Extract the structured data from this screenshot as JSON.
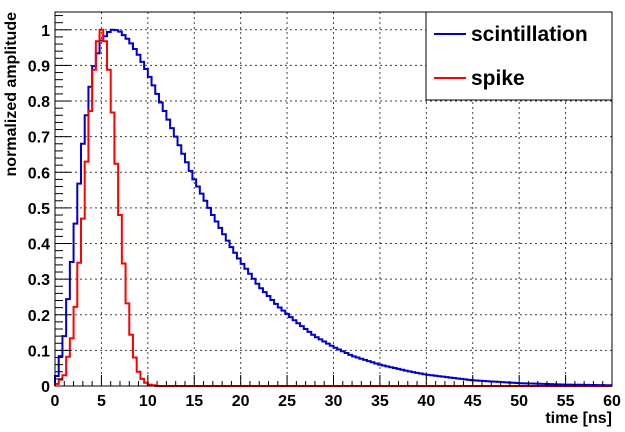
{
  "chart_data": {
    "type": "line",
    "xlabel": "time [ns]",
    "ylabel": "normalized amplitude",
    "xlim": [
      0,
      60
    ],
    "ylim": [
      0,
      1.05
    ],
    "x_ticks": [
      "0",
      "5",
      "10",
      "15",
      "20",
      "25",
      "30",
      "35",
      "40",
      "45",
      "50",
      "55",
      "60"
    ],
    "y_ticks": [
      "0",
      "0.1",
      "0.2",
      "0.3",
      "0.4",
      "0.5",
      "0.6",
      "0.7",
      "0.8",
      "0.9",
      "1"
    ],
    "grid": true,
    "legend_position": "top-right",
    "series": [
      {
        "name": "scintillation",
        "color": "#0000cc",
        "x": [
          0,
          1,
          2,
          3,
          4,
          5,
          6,
          6.5,
          7,
          8,
          9,
          10,
          11,
          12,
          13,
          14,
          15,
          16,
          17,
          18,
          19,
          20,
          22,
          24,
          26,
          28,
          30,
          32,
          35,
          38,
          40,
          45,
          50,
          55,
          60
        ],
        "y": [
          0,
          0.14,
          0.4,
          0.68,
          0.88,
          0.97,
          1.0,
          1.0,
          0.995,
          0.97,
          0.93,
          0.88,
          0.82,
          0.76,
          0.7,
          0.64,
          0.58,
          0.53,
          0.48,
          0.435,
          0.39,
          0.35,
          0.28,
          0.225,
          0.18,
          0.14,
          0.11,
          0.085,
          0.06,
          0.042,
          0.032,
          0.016,
          0.008,
          0.004,
          0.002
        ]
      },
      {
        "name": "spike",
        "color": "#ff0000",
        "x": [
          0,
          1,
          2,
          3,
          3.5,
          4,
          4.5,
          5,
          5.5,
          6,
          6.5,
          7,
          7.5,
          8,
          8.5,
          9,
          9.5,
          10,
          11,
          20,
          40,
          60
        ],
        "y": [
          0,
          0.03,
          0.16,
          0.47,
          0.67,
          0.84,
          0.96,
          1.0,
          0.96,
          0.84,
          0.66,
          0.48,
          0.31,
          0.18,
          0.09,
          0.04,
          0.015,
          0.005,
          0,
          0,
          0,
          0
        ]
      }
    ]
  }
}
